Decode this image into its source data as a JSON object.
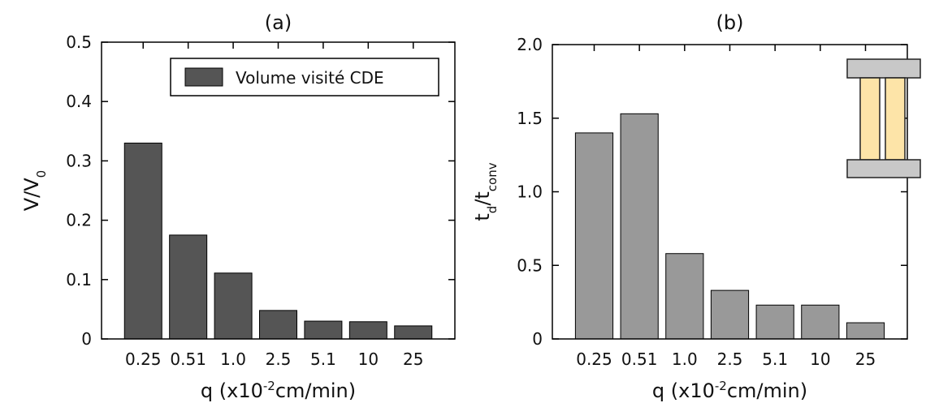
{
  "chart_data": [
    {
      "type": "bar",
      "title": "(a)",
      "ylabel": [
        {
          "text": "V/V"
        },
        {
          "text": "0",
          "shift": "sub"
        }
      ],
      "xlabel": [
        {
          "text": "q (x10"
        },
        {
          "text": "-2",
          "shift": "super"
        },
        {
          "text": "cm/min)"
        }
      ],
      "categories": [
        "0.25",
        "0.51",
        "1.0",
        "2.5",
        "5.1",
        "10",
        "25"
      ],
      "series": [
        {
          "name": "Volume visité CDE",
          "color": "#555555",
          "values": [
            0.33,
            0.175,
            0.111,
            0.048,
            0.03,
            0.029,
            0.022
          ]
        }
      ],
      "ylim": [
        0,
        0.5
      ],
      "yticks": [
        0,
        0.1,
        0.2,
        0.3,
        0.4,
        0.5
      ],
      "legend": "upper-right"
    },
    {
      "type": "bar",
      "title": "(b)",
      "ylabel": [
        {
          "text": "t"
        },
        {
          "text": "d",
          "shift": "sub"
        },
        {
          "text": "/t"
        },
        {
          "text": "conv",
          "shift": "sub"
        }
      ],
      "xlabel": [
        {
          "text": "q (x10"
        },
        {
          "text": "-2",
          "shift": "super"
        },
        {
          "text": "cm/min)"
        }
      ],
      "categories": [
        "0.25",
        "0.51",
        "1.0",
        "2.5",
        "5.1",
        "10",
        "25"
      ],
      "series": [
        {
          "color": "#999999",
          "values": [
            1.4,
            1.53,
            0.58,
            0.33,
            0.23,
            0.23,
            0.11
          ]
        }
      ],
      "ylim": [
        0,
        2
      ],
      "yticks": [
        0,
        0.5,
        {
          "value": 1,
          "label": "1.0"
        },
        1.5,
        {
          "value": 2,
          "label": "2.0"
        }
      ]
    }
  ]
}
